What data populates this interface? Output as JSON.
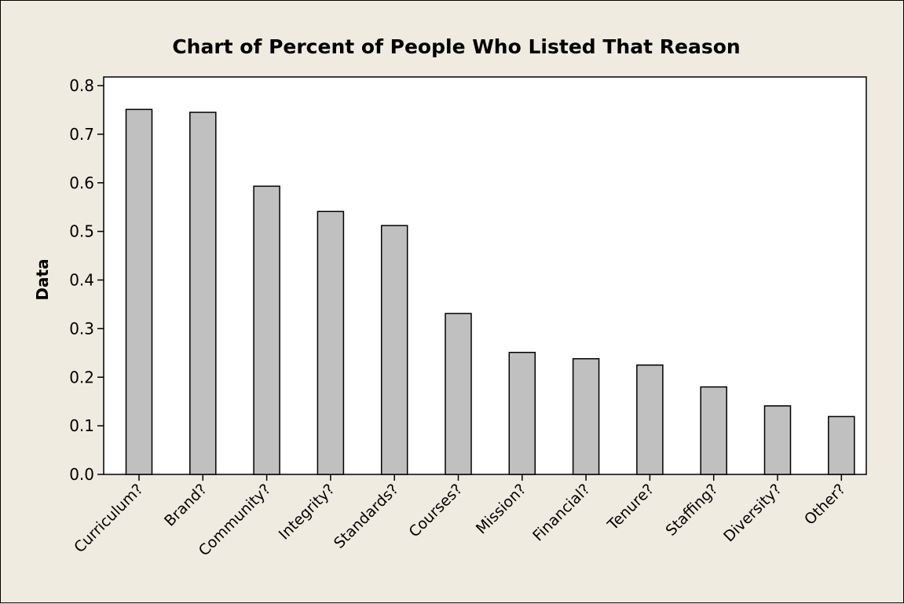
{
  "chart_data": {
    "type": "bar",
    "title": "Chart of Percent of People Who Listed That Reason",
    "xlabel": "",
    "ylabel": "Data",
    "ylim": [
      0,
      0.8
    ],
    "yticks": [
      "0.0",
      "0.1",
      "0.2",
      "0.3",
      "0.4",
      "0.5",
      "0.6",
      "0.7",
      "0.8"
    ],
    "categories": [
      "Curriculum?",
      "Brand?",
      "Community?",
      "Integrity?",
      "Standards?",
      "Courses?",
      "Mission?",
      "Financial?",
      "Tenure?",
      "Staffing?",
      "Diversity?",
      "Other?"
    ],
    "values": [
      0.751,
      0.745,
      0.593,
      0.541,
      0.512,
      0.331,
      0.251,
      0.238,
      0.225,
      0.18,
      0.141,
      0.119
    ],
    "grid": false,
    "bar_color": "#c0c0c0",
    "background_color": "#f0ebe1",
    "plot_background_color": "#ffffff"
  }
}
